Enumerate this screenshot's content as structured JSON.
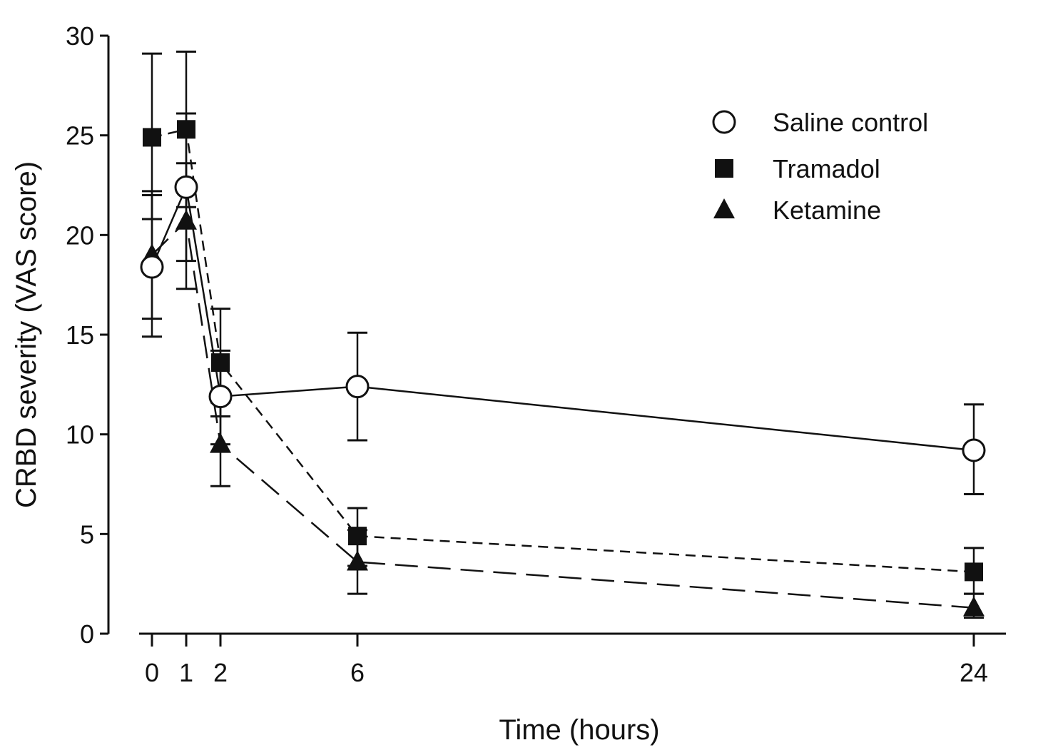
{
  "chart_data": {
    "type": "line",
    "title": "",
    "xlabel": "Time (hours)",
    "ylabel": "CRBD severity (VAS score)",
    "ylim": [
      0,
      30
    ],
    "xlim": [
      0,
      24
    ],
    "yticks": [
      0,
      5,
      10,
      15,
      20,
      25,
      30
    ],
    "xticks": [
      0,
      1,
      2,
      6,
      24
    ],
    "grid": false,
    "legend_position": "top-right",
    "x": [
      0,
      1,
      2,
      6,
      24
    ],
    "series": [
      {
        "name": "Saline control",
        "marker": "open-circle",
        "line": "solid",
        "values": [
          18.4,
          22.4,
          11.9,
          12.4,
          9.2
        ],
        "err_low": [
          15.8,
          18.7,
          9.5,
          9.7,
          7.0
        ],
        "err_high": [
          22.2,
          26.1,
          14.2,
          15.1,
          11.5
        ]
      },
      {
        "name": "Tramadol",
        "marker": "filled-square",
        "line": "short-dash",
        "values": [
          24.9,
          25.3,
          13.6,
          4.9,
          3.1
        ],
        "err_low": [
          20.8,
          21.4,
          10.9,
          3.4,
          2.0
        ],
        "err_high": [
          29.1,
          29.2,
          16.3,
          6.3,
          4.3
        ]
      },
      {
        "name": "Ketamine",
        "marker": "filled-triangle",
        "line": "long-dash",
        "values": [
          19.0,
          20.7,
          9.5,
          3.6,
          1.3
        ],
        "err_low": [
          14.9,
          17.3,
          7.4,
          2.0,
          0.8
        ],
        "err_high": [
          22.0,
          23.6,
          11.6,
          5.2,
          2.0
        ]
      }
    ]
  }
}
